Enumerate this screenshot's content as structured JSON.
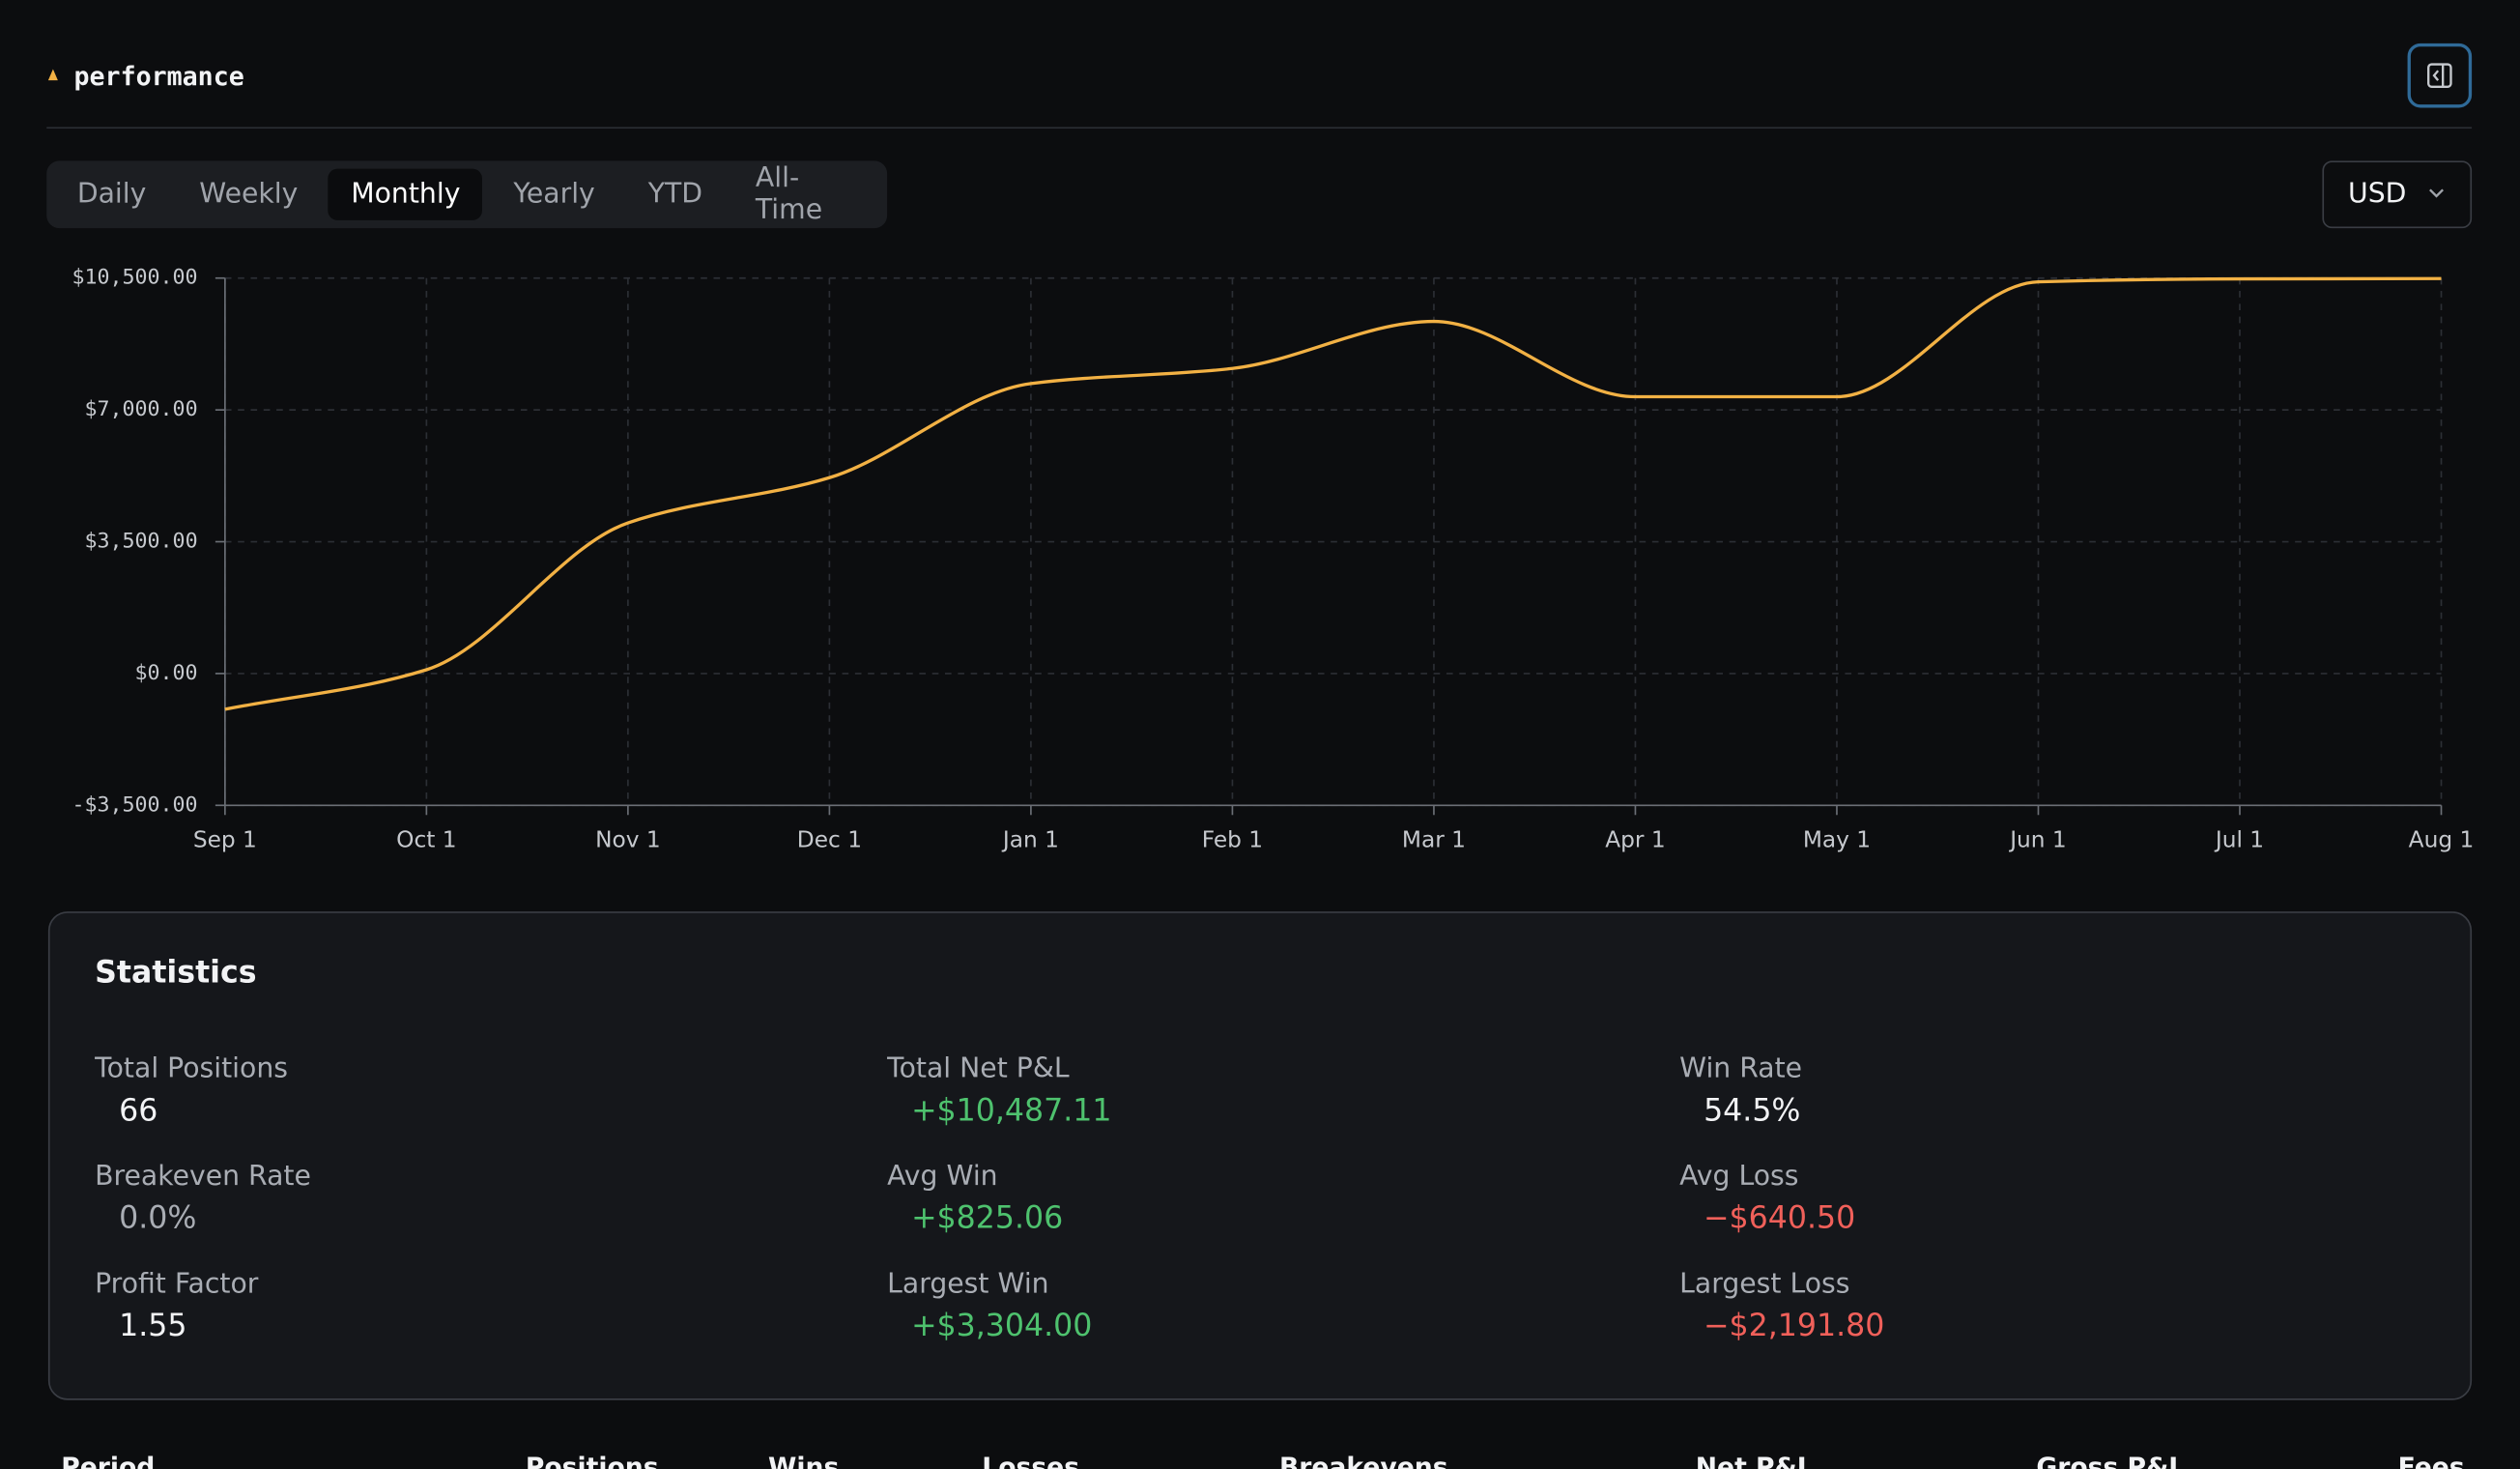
{
  "header": {
    "title": "performance"
  },
  "tabs": [
    {
      "label": "Daily",
      "active": false
    },
    {
      "label": "Weekly",
      "active": false
    },
    {
      "label": "Monthly",
      "active": true
    },
    {
      "label": "Yearly",
      "active": false
    },
    {
      "label": "YTD",
      "active": false
    },
    {
      "label": "All-Time",
      "active": false
    }
  ],
  "currency": "USD",
  "chart_data": {
    "type": "line",
    "categories": [
      "Sep 1",
      "Oct 1",
      "Nov 1",
      "Dec 1",
      "Jan 1",
      "Feb 1",
      "Mar 1",
      "Apr 1",
      "May 1",
      "Jun 1",
      "Jul 1",
      "Aug 1"
    ],
    "values": [
      -950,
      100,
      4000,
      5200,
      7700,
      8100,
      9350,
      7350,
      7350,
      10400,
      10480,
      10487
    ],
    "color": "#f2b144",
    "ylim": [
      -3500,
      10500
    ],
    "yticks": [
      {
        "value": -3500,
        "label": "-$3,500.00"
      },
      {
        "value": 0,
        "label": "$0.00"
      },
      {
        "value": 3500,
        "label": "$3,500.00"
      },
      {
        "value": 7000,
        "label": "$7,000.00"
      },
      {
        "value": 10500,
        "label": "$10,500.00"
      }
    ],
    "grid": true
  },
  "statistics": {
    "title": "Statistics",
    "items": [
      {
        "label": "Total Positions",
        "value": "66",
        "color": "#f2f3f5"
      },
      {
        "label": "Total Net P&L",
        "value": "+$10,487.11",
        "color": "#4ec26e"
      },
      {
        "label": "Win Rate",
        "value": "54.5%",
        "color": "#f2f3f5"
      },
      {
        "label": "Breakeven Rate",
        "value": "0.0%",
        "color": "#a9adb4"
      },
      {
        "label": "Avg Win",
        "value": "+$825.06",
        "color": "#4ec26e"
      },
      {
        "label": "Avg Loss",
        "value": "−$640.50",
        "color": "#f0605a"
      },
      {
        "label": "Profit Factor",
        "value": "1.55",
        "color": "#f2f3f5"
      },
      {
        "label": "Largest Win",
        "value": "+$3,304.00",
        "color": "#4ec26e"
      },
      {
        "label": "Largest Loss",
        "value": "−$2,191.80",
        "color": "#f0605a"
      }
    ]
  },
  "table": {
    "columns": [
      "Period",
      "Positions",
      "Wins",
      "Losses",
      "Breakevens",
      "Net P&L",
      "Gross P&L",
      "Fees"
    ]
  }
}
